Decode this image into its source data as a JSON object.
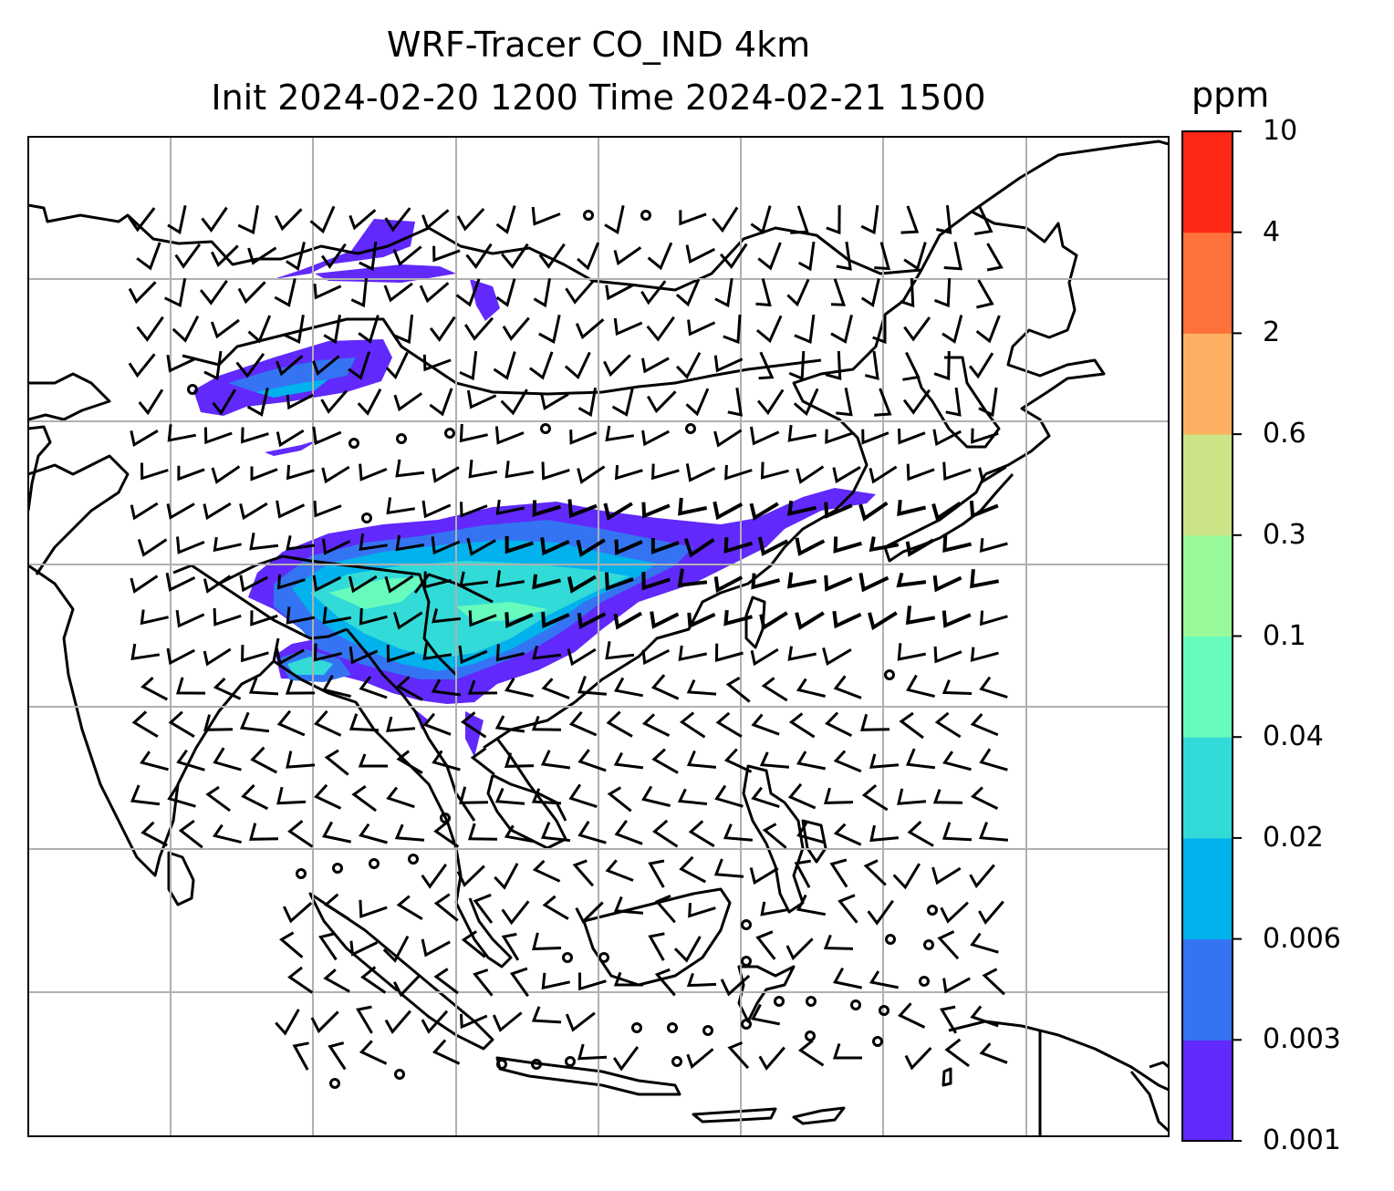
{
  "title": {
    "line1": "WRF-Tracer CO_IND 4km",
    "line2": "Init 2024-02-20 1200 Time 2024-02-21 1500"
  },
  "colorbar": {
    "unit": "ppm",
    "levels": [
      "0.001",
      "0.003",
      "0.006",
      "0.02",
      "0.04",
      "0.1",
      "0.3",
      "0.6",
      "2",
      "4",
      "10"
    ],
    "colors": [
      "#6129fb",
      "#3474f2",
      "#01b2ec",
      "#32dbd7",
      "#67fbbe",
      "#98f99a",
      "#cbe486",
      "#fdb062",
      "#ff713b",
      "#ff2716"
    ]
  },
  "map": {
    "style": "cartopy-like lat-lon panel with coastlines, gridlines and wind barbs",
    "gridlines": true,
    "plume": "industrial CO tracer plume over northern Myanmar / southern China extending east-northeast"
  }
}
